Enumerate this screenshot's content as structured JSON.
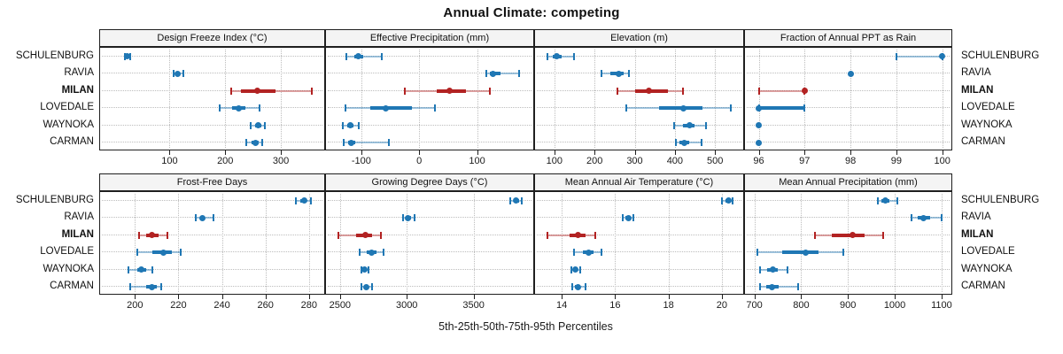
{
  "title": "Annual Climate: competing",
  "footer": "5th-25th-50th-75th-95th Percentiles",
  "colors": {
    "series_normal": "#1f77b4",
    "series_highlight": "#b22222",
    "strip_bg": "#f4f4f4",
    "panel_border": "#1f1f1f",
    "grid": "#bdbdbd"
  },
  "chart_data": {
    "type": "scatter",
    "subtype": "trellis-dotplot-with-percentile-intervals",
    "percentiles_shown": [
      5,
      25,
      50,
      75,
      95
    ],
    "categories": [
      "SCHULENBURG",
      "RAVIA",
      "MILAN",
      "LOVEDALE",
      "WAYNOKA",
      "CARMAN"
    ],
    "highlight_category": "MILAN",
    "row_labels_on_both_sides": true,
    "grid": "dotted",
    "legend_position": "none",
    "panels": [
      {
        "title": "Design Freeze Index (°C)",
        "xlim": [
          -25,
          378
        ],
        "ticks": [
          100,
          200,
          300
        ],
        "series": [
          {
            "name": "SCHULENBURG",
            "p": [
              19,
              22,
              24,
              26,
              29
            ]
          },
          {
            "name": "RAVIA",
            "p": [
              108,
              112,
              114,
              117,
              125
            ]
          },
          {
            "name": "MILAN",
            "p": [
              210,
              228,
              258,
              290,
              355
            ]
          },
          {
            "name": "LOVEDALE",
            "p": [
              190,
              212,
              224,
              237,
              262
            ]
          },
          {
            "name": "WAYNOKA",
            "p": [
              245,
              254,
              260,
              265,
              272
            ]
          },
          {
            "name": "CARMAN",
            "p": [
              238,
              248,
              255,
              260,
              267
            ]
          }
        ]
      },
      {
        "title": "Effective Precipitation (mm)",
        "xlim": [
          -161,
          197
        ],
        "ticks": [
          -100,
          0,
          100
        ],
        "series": [
          {
            "name": "SCHULENBURG",
            "p": [
              -126,
              -112,
              -105,
              -97,
              -65
            ]
          },
          {
            "name": "RAVIA",
            "p": [
              116,
              122,
              128,
              140,
              172
            ]
          },
          {
            "name": "MILAN",
            "p": [
              -25,
              30,
              53,
              80,
              122
            ]
          },
          {
            "name": "LOVEDALE",
            "p": [
              -127,
              -85,
              -57,
              -12,
              27
            ]
          },
          {
            "name": "WAYNOKA",
            "p": [
              -132,
              -124,
              -119,
              -113,
              -104
            ]
          },
          {
            "name": "CARMAN",
            "p": [
              -130,
              -122,
              -117,
              -110,
              -53
            ]
          }
        ]
      },
      {
        "title": "Elevation (m)",
        "xlim": [
          52,
          570
        ],
        "ticks": [
          100,
          200,
          300,
          400,
          500
        ],
        "series": [
          {
            "name": "SCHULENBURG",
            "p": [
              82,
              95,
              107,
              118,
              150
            ]
          },
          {
            "name": "RAVIA",
            "p": [
              218,
              240,
              261,
              272,
              285
            ]
          },
          {
            "name": "MILAN",
            "p": [
              256,
              300,
              336,
              382,
              420
            ]
          },
          {
            "name": "LOVEDALE",
            "p": [
              280,
              360,
              422,
              468,
              540
            ]
          },
          {
            "name": "WAYNOKA",
            "p": [
              398,
              420,
              436,
              448,
              478
            ]
          },
          {
            "name": "CARMAN",
            "p": [
              402,
              412,
              424,
              436,
              467
            ]
          }
        ]
      },
      {
        "title": "Fraction of Annual PPT as Rain",
        "xlim": [
          95.7,
          100.2
        ],
        "ticks": [
          96,
          97,
          98,
          99,
          100
        ],
        "series": [
          {
            "name": "SCHULENBURG",
            "p": [
              99,
              100,
              100,
              100,
              100
            ]
          },
          {
            "name": "RAVIA",
            "p": [
              98,
              98,
              98,
              98,
              98
            ]
          },
          {
            "name": "MILAN",
            "p": [
              96,
              97,
              97,
              97,
              97
            ]
          },
          {
            "name": "LOVEDALE",
            "p": [
              96,
              96,
              96,
              97,
              97
            ]
          },
          {
            "name": "WAYNOKA",
            "p": [
              96,
              96,
              96,
              96,
              96
            ]
          },
          {
            "name": "CARMAN",
            "p": [
              96,
              96,
              96,
              96,
              96
            ]
          }
        ]
      },
      {
        "title": "Frost-Free Days",
        "xlim": [
          184,
          287
        ],
        "ticks": [
          200,
          220,
          240,
          260,
          280
        ],
        "series": [
          {
            "name": "SCHULENBURG",
            "p": [
              274,
              276,
              278,
              279,
              281
            ]
          },
          {
            "name": "RAVIA",
            "p": [
              228,
              230,
              231,
              232,
              236
            ]
          },
          {
            "name": "MILAN",
            "p": [
              202,
              205,
              208,
              211,
              215
            ]
          },
          {
            "name": "LOVEDALE",
            "p": [
              201,
              208,
              213,
              217,
              221
            ]
          },
          {
            "name": "WAYNOKA",
            "p": [
              197,
              201,
              203,
              205,
              208
            ]
          },
          {
            "name": "CARMAN",
            "p": [
              198,
              205,
              208,
              210,
              212
            ]
          }
        ]
      },
      {
        "title": "Growing Degree Days (°C)",
        "xlim": [
          2395,
          3947
        ],
        "ticks": [
          2500,
          3000,
          3500
        ],
        "series": [
          {
            "name": "SCHULENBURG",
            "p": [
              3772,
              3800,
              3820,
              3840,
              3860
            ]
          },
          {
            "name": "RAVIA",
            "p": [
              2971,
              2995,
              3009,
              3030,
              3060
            ]
          },
          {
            "name": "MILAN",
            "p": [
              2485,
              2620,
              2693,
              2740,
              2803
            ]
          },
          {
            "name": "LOVEDALE",
            "p": [
              2649,
              2700,
              2737,
              2770,
              2825
            ]
          },
          {
            "name": "WAYNOKA",
            "p": [
              2658,
              2672,
              2686,
              2700,
              2712
            ]
          },
          {
            "name": "CARMAN",
            "p": [
              2660,
              2680,
              2697,
              2715,
              2737
            ]
          }
        ]
      },
      {
        "title": "Mean Annual Air Temperature (°C)",
        "xlim": [
          13.0,
          20.8
        ],
        "ticks": [
          14,
          16,
          18,
          20
        ],
        "series": [
          {
            "name": "SCHULENBURG",
            "p": [
              20.0,
              20.15,
              20.25,
              20.3,
              20.4
            ]
          },
          {
            "name": "RAVIA",
            "p": [
              16.3,
              16.4,
              16.5,
              16.55,
              16.7
            ]
          },
          {
            "name": "MILAN",
            "p": [
              13.45,
              14.3,
              14.6,
              14.9,
              15.25
            ]
          },
          {
            "name": "LOVEDALE",
            "p": [
              14.45,
              14.8,
              15.0,
              15.2,
              15.5
            ]
          },
          {
            "name": "WAYNOKA",
            "p": [
              14.35,
              14.45,
              14.5,
              14.6,
              14.7
            ]
          },
          {
            "name": "CARMAN",
            "p": [
              14.4,
              14.5,
              14.6,
              14.7,
              14.9
            ]
          }
        ]
      },
      {
        "title": "Mean Annual Precipitation (mm)",
        "xlim": [
          680,
          1121
        ],
        "ticks": [
          700,
          800,
          900,
          1000,
          1100
        ],
        "series": [
          {
            "name": "SCHULENBURG",
            "p": [
              964,
              972,
              980,
              988,
              1005
            ]
          },
          {
            "name": "RAVIA",
            "p": [
              1035,
              1050,
              1062,
              1075,
              1100
            ]
          },
          {
            "name": "MILAN",
            "p": [
              830,
              865,
              910,
              935,
              975
            ]
          },
          {
            "name": "LOVEDALE",
            "p": [
              706,
              760,
              810,
              838,
              890
            ]
          },
          {
            "name": "WAYNOKA",
            "p": [
              713,
              728,
              740,
              750,
              770
            ]
          },
          {
            "name": "CARMAN",
            "p": [
              712,
              725,
              738,
              752,
              793
            ]
          }
        ]
      }
    ]
  }
}
